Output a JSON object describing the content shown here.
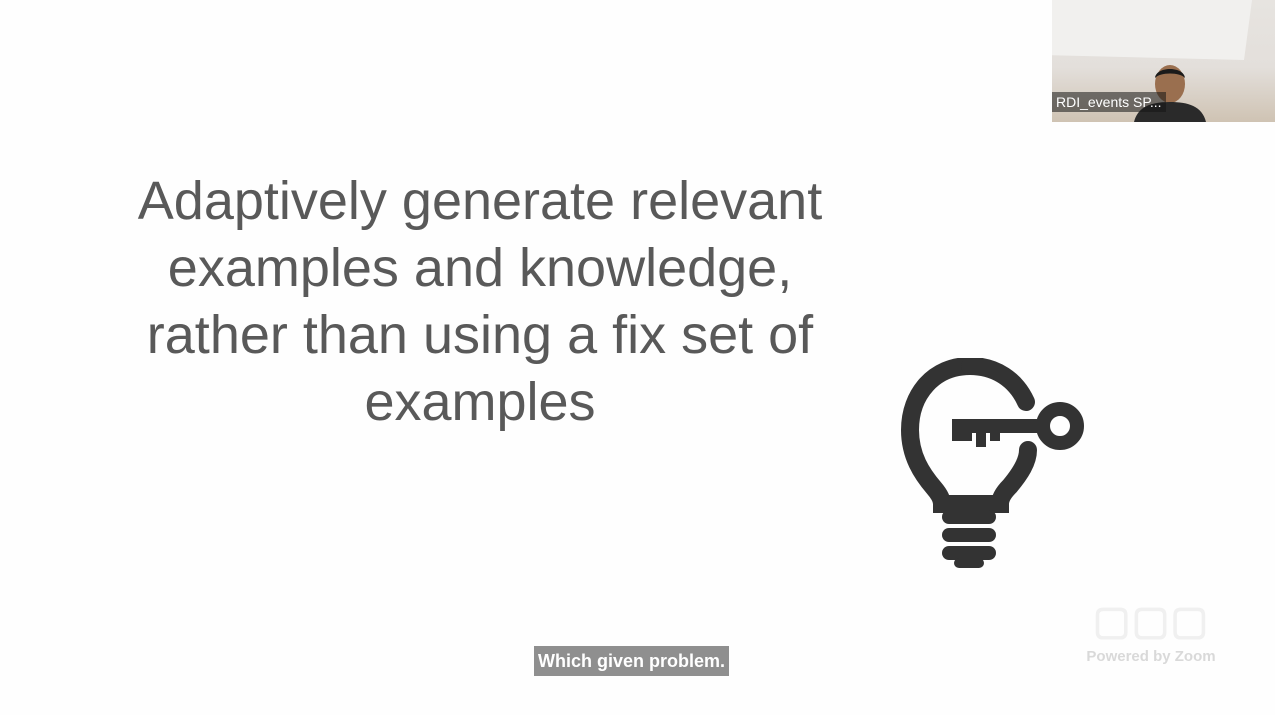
{
  "slide": {
    "lines": [
      "Adaptively generate relevant",
      "examples and knowledge,",
      "rather than using a fix set of",
      "examples"
    ],
    "icon": "lightbulb-key-icon"
  },
  "video_tile": {
    "participant_name": "RDI_events SP..."
  },
  "caption": {
    "text": "Which given problem."
  },
  "watermark": {
    "powered_by": "Powered by Zoom"
  },
  "colors": {
    "slide_text": "#595959",
    "icon": "#333333",
    "caption_bg": "#8f8f8f"
  }
}
